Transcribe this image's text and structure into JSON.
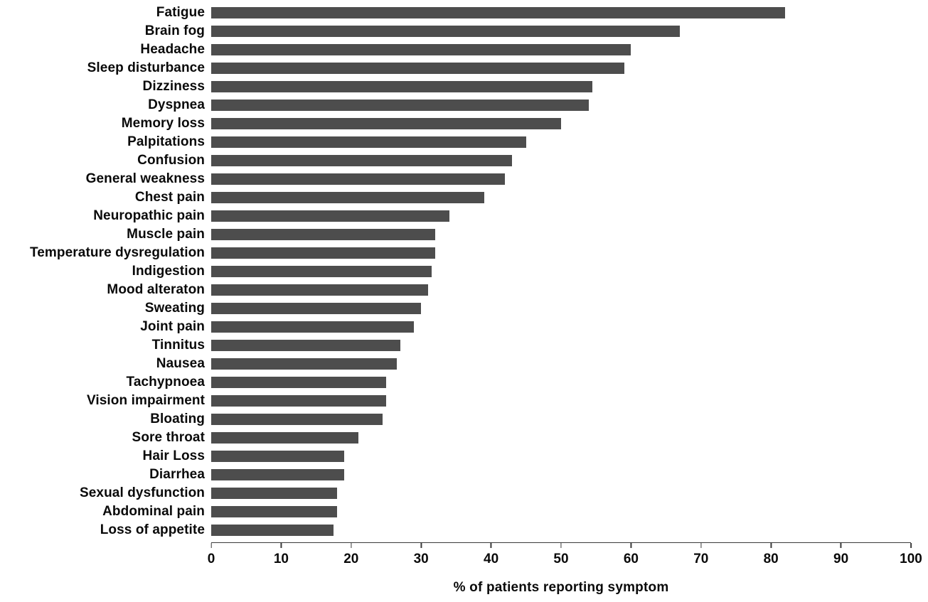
{
  "chart_data": {
    "type": "bar",
    "orientation": "horizontal",
    "title": "",
    "xlabel": "% of patients reporting symptom",
    "ylabel": "",
    "xlim": [
      0,
      100
    ],
    "x_ticks": [
      "0",
      "10",
      "20",
      "30",
      "40",
      "50",
      "60",
      "70",
      "80",
      "90",
      "100"
    ],
    "grid": false,
    "legend": false,
    "bar_color": "#4d4d4d",
    "categories": [
      "Fatigue",
      "Brain fog",
      "Headache",
      "Sleep disturbance",
      "Dizziness",
      "Dyspnea",
      "Memory loss",
      "Palpitations",
      "Confusion",
      "General weakness",
      "Chest pain",
      "Neuropathic pain",
      "Muscle pain",
      "Temperature dysregulation",
      "Indigestion",
      "Mood alteraton",
      "Sweating",
      "Joint pain",
      "Tinnitus",
      "Nausea",
      "Tachypnoea",
      "Vision impairment",
      "Bloating",
      "Sore throat",
      "Hair Loss",
      "Diarrhea",
      "Sexual dysfunction",
      "Abdominal pain",
      "Loss of appetite"
    ],
    "values": [
      82,
      67,
      60,
      59,
      54.5,
      54,
      50,
      45,
      43,
      42,
      39,
      34,
      32,
      32,
      31.5,
      31,
      30,
      29,
      27,
      26.5,
      25,
      25,
      24.5,
      21,
      19,
      19,
      18,
      18,
      17.5
    ]
  }
}
